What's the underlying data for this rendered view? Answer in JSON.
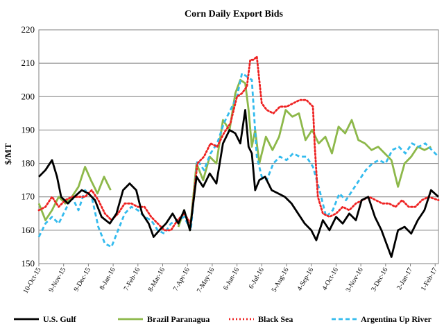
{
  "chart_data": {
    "type": "line",
    "title": "Corn Daily Export Bids",
    "xlabel": "",
    "ylabel": "$/MT",
    "ylim": [
      150,
      220
    ],
    "yticks": [
      150,
      160,
      170,
      180,
      190,
      200,
      210,
      220
    ],
    "xticks": [
      "10-Oct-15",
      "9-Nov-15",
      "9-Dec-15",
      "8-Jan-16",
      "7-Feb-16",
      "8-Mar-16",
      "7-Apr-16",
      "7-May-16",
      "6-Jun-16",
      "6-Jul-16",
      "5-Aug-16",
      "4-Sep-16",
      "4-Oct-16",
      "3-Nov-16",
      "3-Dec-16",
      "2-Jan-17",
      "1-Feb-17"
    ],
    "grid": "horizontal",
    "legend_position": "bottom",
    "series": [
      {
        "name": "U.S. Gulf",
        "color": "#000000",
        "dash": "solid",
        "x": [
          "2015-10-10",
          "2015-10-18",
          "2015-10-26",
          "2015-11-01",
          "2015-11-06",
          "2015-11-14",
          "2015-11-22",
          "2015-12-01",
          "2015-12-09",
          "2015-12-17",
          "2015-12-25",
          "2016-01-04",
          "2016-01-12",
          "2016-01-20",
          "2016-01-28",
          "2016-02-05",
          "2016-02-12",
          "2016-02-20",
          "2016-02-26",
          "2016-03-04",
          "2016-03-12",
          "2016-03-20",
          "2016-03-27",
          "2016-04-03",
          "2016-04-10",
          "2016-04-18",
          "2016-04-26",
          "2016-05-04",
          "2016-05-12",
          "2016-05-20",
          "2016-05-28",
          "2016-06-04",
          "2016-06-10",
          "2016-06-16",
          "2016-06-20",
          "2016-06-24",
          "2016-06-28",
          "2016-07-03",
          "2016-07-10",
          "2016-07-18",
          "2016-07-26",
          "2016-08-03",
          "2016-08-11",
          "2016-08-19",
          "2016-08-27",
          "2016-09-04",
          "2016-09-10",
          "2016-09-18",
          "2016-09-26",
          "2016-10-04",
          "2016-10-12",
          "2016-10-20",
          "2016-10-28",
          "2016-11-04",
          "2016-11-12",
          "2016-11-20",
          "2016-11-28",
          "2016-12-04",
          "2016-12-10",
          "2016-12-18",
          "2016-12-26",
          "2017-01-03",
          "2017-01-11",
          "2017-01-19",
          "2017-01-27",
          "2017-02-05"
        ],
        "y": [
          176,
          178,
          181,
          176,
          170,
          168,
          170,
          172,
          171,
          169,
          164,
          162,
          165,
          172,
          174,
          172,
          165,
          162,
          158,
          160,
          162,
          165,
          162,
          166,
          160,
          176,
          173,
          177,
          174,
          186,
          190,
          189,
          186,
          196,
          185,
          183,
          172,
          175,
          176,
          172,
          171,
          170,
          168,
          165,
          162,
          160,
          157,
          163,
          160,
          164,
          162,
          165,
          163,
          169,
          170,
          164,
          160,
          156,
          152,
          160,
          161,
          159,
          163,
          166,
          172,
          170
        ]
      },
      {
        "name": "Brazil Paranagua",
        "color": "#8db84a",
        "dash": "solid",
        "x": [
          "2015-10-10",
          "2015-10-18",
          "2015-10-26",
          "2015-11-03",
          "2015-11-11",
          "2015-11-19",
          "2015-11-27",
          "2015-12-05",
          "2015-12-12",
          "2015-12-20",
          "2015-12-28",
          "2016-01-05"
        ],
        "x2": [
          "2016-03-27",
          "2016-04-03",
          "2016-04-10",
          "2016-04-18",
          "2016-04-26",
          "2016-05-04",
          "2016-05-12",
          "2016-05-20",
          "2016-05-28",
          "2016-06-04",
          "2016-06-10",
          "2016-06-16",
          "2016-06-20",
          "2016-06-24",
          "2016-06-28",
          "2016-07-03",
          "2016-07-11",
          "2016-07-19",
          "2016-07-27",
          "2016-08-04",
          "2016-08-12",
          "2016-08-20",
          "2016-08-28",
          "2016-09-05",
          "2016-09-13",
          "2016-09-21",
          "2016-09-29",
          "2016-10-07",
          "2016-10-15",
          "2016-10-23",
          "2016-10-31",
          "2016-11-08",
          "2016-11-16",
          "2016-11-24",
          "2016-12-02",
          "2016-12-10",
          "2016-12-18",
          "2016-12-26",
          "2017-01-03",
          "2017-01-11",
          "2017-01-19",
          "2017-01-27"
        ],
        "y": [
          168,
          163,
          166,
          170,
          168,
          170,
          173,
          179,
          175,
          171,
          176,
          172
        ],
        "y2": [
          161,
          166,
          160,
          180,
          175,
          182,
          180,
          193,
          190,
          201,
          205,
          204,
          196,
          185,
          190,
          180,
          188,
          184,
          188,
          196,
          194,
          195,
          187,
          190,
          186,
          188,
          183,
          191,
          189,
          193,
          187,
          186,
          184,
          185,
          183,
          181,
          173,
          180,
          182,
          185,
          184,
          185
        ]
      },
      {
        "name": "Black Sea",
        "color": "#ee2222",
        "dash": "dotted",
        "x": [
          "2015-10-10",
          "2015-10-18",
          "2015-10-26",
          "2015-11-03",
          "2015-11-11",
          "2015-11-19",
          "2015-11-27",
          "2015-12-05",
          "2015-12-13",
          "2015-12-21",
          "2015-12-29",
          "2016-01-06",
          "2016-01-14",
          "2016-01-22",
          "2016-01-30",
          "2016-02-07",
          "2016-02-15",
          "2016-02-23",
          "2016-03-02",
          "2016-03-10",
          "2016-03-18",
          "2016-03-26",
          "2016-04-03",
          "2016-04-11",
          "2016-04-19",
          "2016-04-27",
          "2016-05-05",
          "2016-05-13",
          "2016-05-21",
          "2016-05-29",
          "2016-06-06",
          "2016-06-12",
          "2016-06-18",
          "2016-06-22",
          "2016-06-26",
          "2016-06-30",
          "2016-07-06",
          "2016-07-12",
          "2016-07-20",
          "2016-07-28",
          "2016-08-05",
          "2016-08-13",
          "2016-08-21",
          "2016-08-29",
          "2016-09-06",
          "2016-09-08",
          "2016-09-12",
          "2016-09-18",
          "2016-09-26",
          "2016-10-04",
          "2016-10-12",
          "2016-10-20",
          "2016-10-28",
          "2016-11-05",
          "2016-11-13",
          "2016-11-21",
          "2016-11-29",
          "2016-12-07",
          "2016-12-15",
          "2016-12-23",
          "2016-12-31",
          "2017-01-08",
          "2017-01-16",
          "2017-01-24",
          "2017-02-05"
        ],
        "y": [
          166,
          167,
          170,
          167,
          169,
          170,
          170,
          170,
          172,
          169,
          165,
          163,
          165,
          168,
          168,
          167,
          167,
          164,
          162,
          160,
          160,
          163,
          165,
          162,
          180,
          182,
          186,
          185,
          189,
          192,
          200,
          201,
          203,
          211,
          211,
          212,
          198,
          196,
          195,
          197,
          197,
          198,
          199,
          199,
          197,
          186,
          170,
          165,
          164,
          165,
          167,
          166,
          168,
          169,
          170,
          169,
          168,
          168,
          167,
          169,
          167,
          167,
          169,
          170,
          169
        ]
      },
      {
        "name": "Argentina Up River",
        "color": "#33bbee",
        "dash": "dashed",
        "x": [
          "2015-10-10",
          "2015-10-18",
          "2015-10-26",
          "2015-11-03",
          "2015-11-11",
          "2015-11-19",
          "2015-11-27",
          "2015-12-05",
          "2015-12-13",
          "2015-12-21",
          "2015-12-29",
          "2016-01-06",
          "2016-01-14",
          "2016-01-22",
          "2016-01-30",
          "2016-02-07",
          "2016-02-15",
          "2016-02-23",
          "2016-03-02",
          "2016-03-10",
          "2016-03-18",
          "2016-03-26",
          "2016-04-03",
          "2016-04-11",
          "2016-04-19",
          "2016-04-27",
          "2016-05-05",
          "2016-05-13",
          "2016-05-21",
          "2016-05-29",
          "2016-06-06",
          "2016-06-12",
          "2016-06-18",
          "2016-06-24",
          "2016-06-30",
          "2016-07-06",
          "2016-07-12",
          "2016-07-20",
          "2016-07-28",
          "2016-08-05",
          "2016-08-13",
          "2016-08-21",
          "2016-08-29",
          "2016-09-06",
          "2016-09-14",
          "2016-09-22",
          "2016-09-30",
          "2016-10-08",
          "2016-10-16",
          "2016-10-24",
          "2016-11-01",
          "2016-11-09",
          "2016-11-17",
          "2016-11-25",
          "2016-12-03",
          "2016-12-11",
          "2016-12-19",
          "2016-12-27",
          "2017-01-04",
          "2017-01-12",
          "2017-01-20",
          "2017-01-28",
          "2017-02-05"
        ],
        "y": [
          158,
          162,
          164,
          162,
          166,
          170,
          166,
          172,
          170,
          161,
          156,
          155,
          160,
          165,
          167,
          166,
          164,
          163,
          160,
          159,
          162,
          163,
          164,
          160,
          181,
          178,
          183,
          186,
          192,
          196,
          200,
          207,
          206,
          205,
          182,
          176,
          175,
          180,
          182,
          181,
          183,
          182,
          182,
          179,
          172,
          164,
          166,
          171,
          169,
          172,
          175,
          178,
          180,
          181,
          180,
          184,
          185,
          183,
          186,
          185,
          186,
          184,
          182
        ]
      }
    ]
  }
}
